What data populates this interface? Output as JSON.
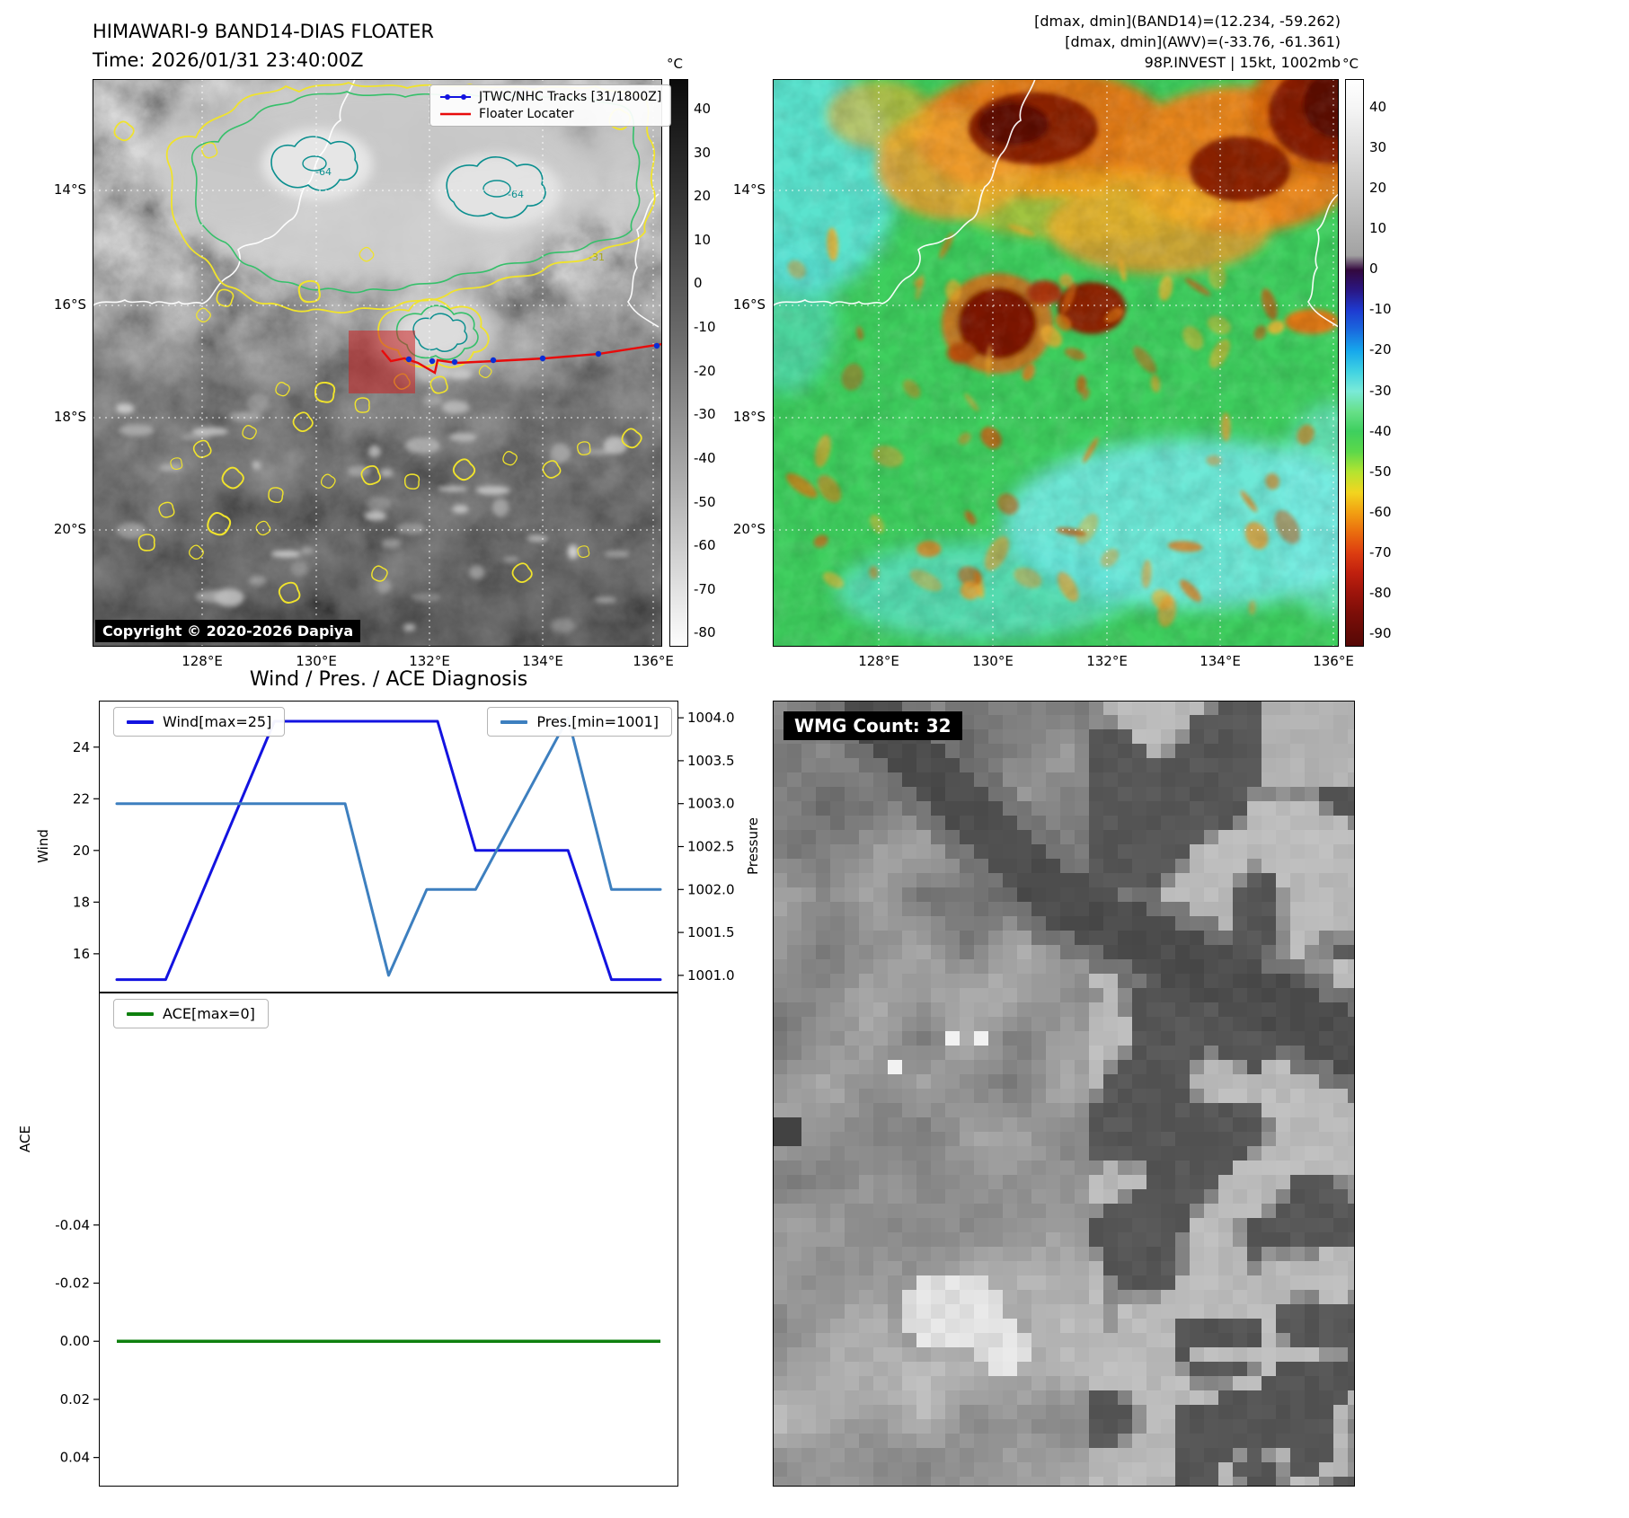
{
  "figure": {
    "tl": {
      "title_line1": "HIMAWARI-9 BAND14-DIAS FLOATER",
      "title_line2": "Time: 2026/01/31 23:40:00Z",
      "legend_track": "JTWC/NHC Tracks [31/1800Z]",
      "legend_floater": "Floater Locater",
      "copyright": "Copyright © 2020-2026 Dapiya",
      "colorbar_unit": "°C",
      "colorbar_ticks": [
        40,
        30,
        20,
        10,
        0,
        -10,
        -20,
        -30,
        -40,
        -50,
        -60,
        -70,
        -80
      ],
      "lat_ticks": [
        "14°S",
        "16°S",
        "18°S",
        "20°S"
      ],
      "lon_ticks": [
        "128°E",
        "130°E",
        "132°E",
        "134°E",
        "136°E"
      ],
      "contour_labels": [
        "-64",
        "-64",
        "-31"
      ]
    },
    "tr": {
      "header_lines": [
        "[dmax, dmin](BAND14)=(12.234, -59.262)",
        "[dmax, dmin](AWV)=(-33.76, -61.361)",
        "98P.INVEST | 15kt, 1002mb"
      ],
      "colorbar_unit": "°C",
      "colorbar_ticks": [
        40,
        30,
        20,
        10,
        0,
        -10,
        -20,
        -30,
        -40,
        -50,
        -60,
        -70,
        -80,
        -90
      ],
      "lat_ticks": [
        "14°S",
        "16°S",
        "18°S",
        "20°S"
      ],
      "lon_ticks": [
        "128°E",
        "130°E",
        "132°E",
        "134°E",
        "136°E"
      ]
    },
    "br": {
      "label": "WMG Count: 32"
    }
  },
  "chart_data": [
    {
      "type": "line",
      "title": "Wind / Pres. / ACE Diagnosis",
      "series": [
        {
          "name": "Wind[max=25]",
          "color": "#1313e0",
          "axis": "left",
          "x": [
            0,
            0.9,
            2.9,
            5.9,
            6.6,
            8.3,
            9.1,
            10
          ],
          "y": [
            15,
            15,
            25,
            25,
            20,
            20,
            15,
            15
          ]
        },
        {
          "name": "Pres.[min=1001]",
          "color": "#3d7fbf",
          "axis": "right",
          "x": [
            0,
            4.2,
            5.0,
            5.7,
            6.6,
            8.3,
            9.1,
            10
          ],
          "y": [
            1003,
            1003,
            1001,
            1002,
            1002,
            1004,
            1002,
            1002
          ]
        }
      ],
      "left_axis": {
        "label": "Wind",
        "ticks": [
          16,
          18,
          20,
          22,
          24
        ],
        "ylim": [
          14.5,
          25.8
        ],
        "decimals": 0
      },
      "right_axis": {
        "label": "Pressure",
        "ticks": [
          1001,
          1001.5,
          1002,
          1002.5,
          1003,
          1003.5,
          1004
        ],
        "ylim": [
          1000.8,
          1004.2
        ],
        "decimals": 1
      },
      "xlim": [
        0,
        10
      ],
      "legend_position": "upper-left and upper-right",
      "grid": false
    },
    {
      "type": "line",
      "title": "",
      "series": [
        {
          "name": "ACE[max=0]",
          "color": "#0e800e",
          "axis": "left",
          "x": [
            0,
            10
          ],
          "y": [
            0,
            0
          ]
        }
      ],
      "left_axis": {
        "label": "ACE",
        "ticks": [
          0.04,
          0.02,
          0,
          -0.02,
          -0.04
        ],
        "ylim": [
          0.05,
          -0.12
        ],
        "decimals": 2
      },
      "xlim": [
        0,
        10
      ],
      "grid": false
    }
  ]
}
